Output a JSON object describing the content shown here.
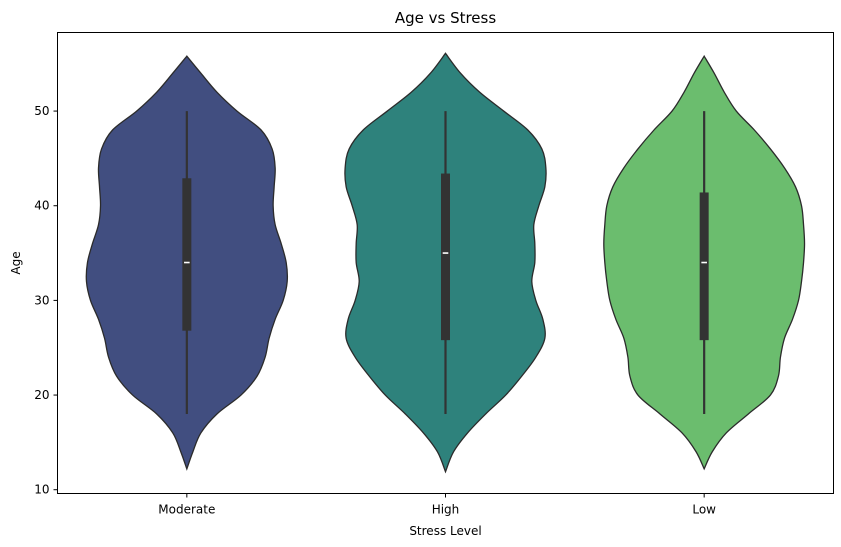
{
  "chart_data": {
    "type": "violin",
    "title": "Age vs Stress",
    "xlabel": "Stress Level",
    "ylabel": "Age",
    "categories": [
      "Moderate",
      "High",
      "Low"
    ],
    "ylim": [
      9.6,
      58.3
    ],
    "yticks": [
      10,
      20,
      30,
      40,
      50
    ],
    "colors": [
      "#414e80",
      "#2e827c",
      "#6bbd6e"
    ],
    "grid": false,
    "legend": "none",
    "series": [
      {
        "category": "Moderate",
        "min": 18,
        "q1": 26.8,
        "median": 34,
        "q3": 42.9,
        "max": 50,
        "density": [
          [
            12.2,
            0.0
          ],
          [
            14,
            0.06
          ],
          [
            16,
            0.14
          ],
          [
            18,
            0.3
          ],
          [
            20,
            0.54
          ],
          [
            22,
            0.7
          ],
          [
            24,
            0.78
          ],
          [
            26,
            0.82
          ],
          [
            28,
            0.88
          ],
          [
            30,
            0.96
          ],
          [
            32,
            1.0
          ],
          [
            34,
            0.99
          ],
          [
            36,
            0.94
          ],
          [
            38,
            0.88
          ],
          [
            40,
            0.86
          ],
          [
            42,
            0.87
          ],
          [
            44,
            0.88
          ],
          [
            46,
            0.85
          ],
          [
            48,
            0.74
          ],
          [
            50,
            0.5
          ],
          [
            52,
            0.3
          ],
          [
            54,
            0.14
          ],
          [
            55.8,
            0.0
          ]
        ]
      },
      {
        "category": "High",
        "min": 18,
        "q1": 25.8,
        "median": 35,
        "q3": 43.4,
        "max": 50,
        "density": [
          [
            11.9,
            0.0
          ],
          [
            14,
            0.08
          ],
          [
            16,
            0.22
          ],
          [
            18,
            0.4
          ],
          [
            20,
            0.6
          ],
          [
            22,
            0.76
          ],
          [
            24,
            0.9
          ],
          [
            26,
            0.99
          ],
          [
            28,
            0.97
          ],
          [
            30,
            0.9
          ],
          [
            32,
            0.86
          ],
          [
            34,
            0.89
          ],
          [
            36,
            0.89
          ],
          [
            38,
            0.88
          ],
          [
            40,
            0.93
          ],
          [
            42,
            0.99
          ],
          [
            44,
            1.0
          ],
          [
            46,
            0.96
          ],
          [
            48,
            0.82
          ],
          [
            50,
            0.58
          ],
          [
            52,
            0.34
          ],
          [
            54,
            0.15
          ],
          [
            56.1,
            0.0
          ]
        ]
      },
      {
        "category": "Low",
        "min": 18,
        "q1": 25.8,
        "median": 34,
        "q3": 41.4,
        "max": 50,
        "density": [
          [
            12.2,
            0.0
          ],
          [
            14,
            0.08
          ],
          [
            16,
            0.22
          ],
          [
            18,
            0.44
          ],
          [
            20,
            0.66
          ],
          [
            22,
            0.74
          ],
          [
            24,
            0.76
          ],
          [
            26,
            0.8
          ],
          [
            28,
            0.88
          ],
          [
            30,
            0.94
          ],
          [
            32,
            0.97
          ],
          [
            34,
            0.99
          ],
          [
            36,
            1.0
          ],
          [
            38,
            0.99
          ],
          [
            40,
            0.97
          ],
          [
            42,
            0.91
          ],
          [
            44,
            0.8
          ],
          [
            46,
            0.66
          ],
          [
            48,
            0.5
          ],
          [
            50,
            0.32
          ],
          [
            52,
            0.2
          ],
          [
            54,
            0.1
          ],
          [
            55.8,
            0.0
          ]
        ]
      }
    ]
  }
}
